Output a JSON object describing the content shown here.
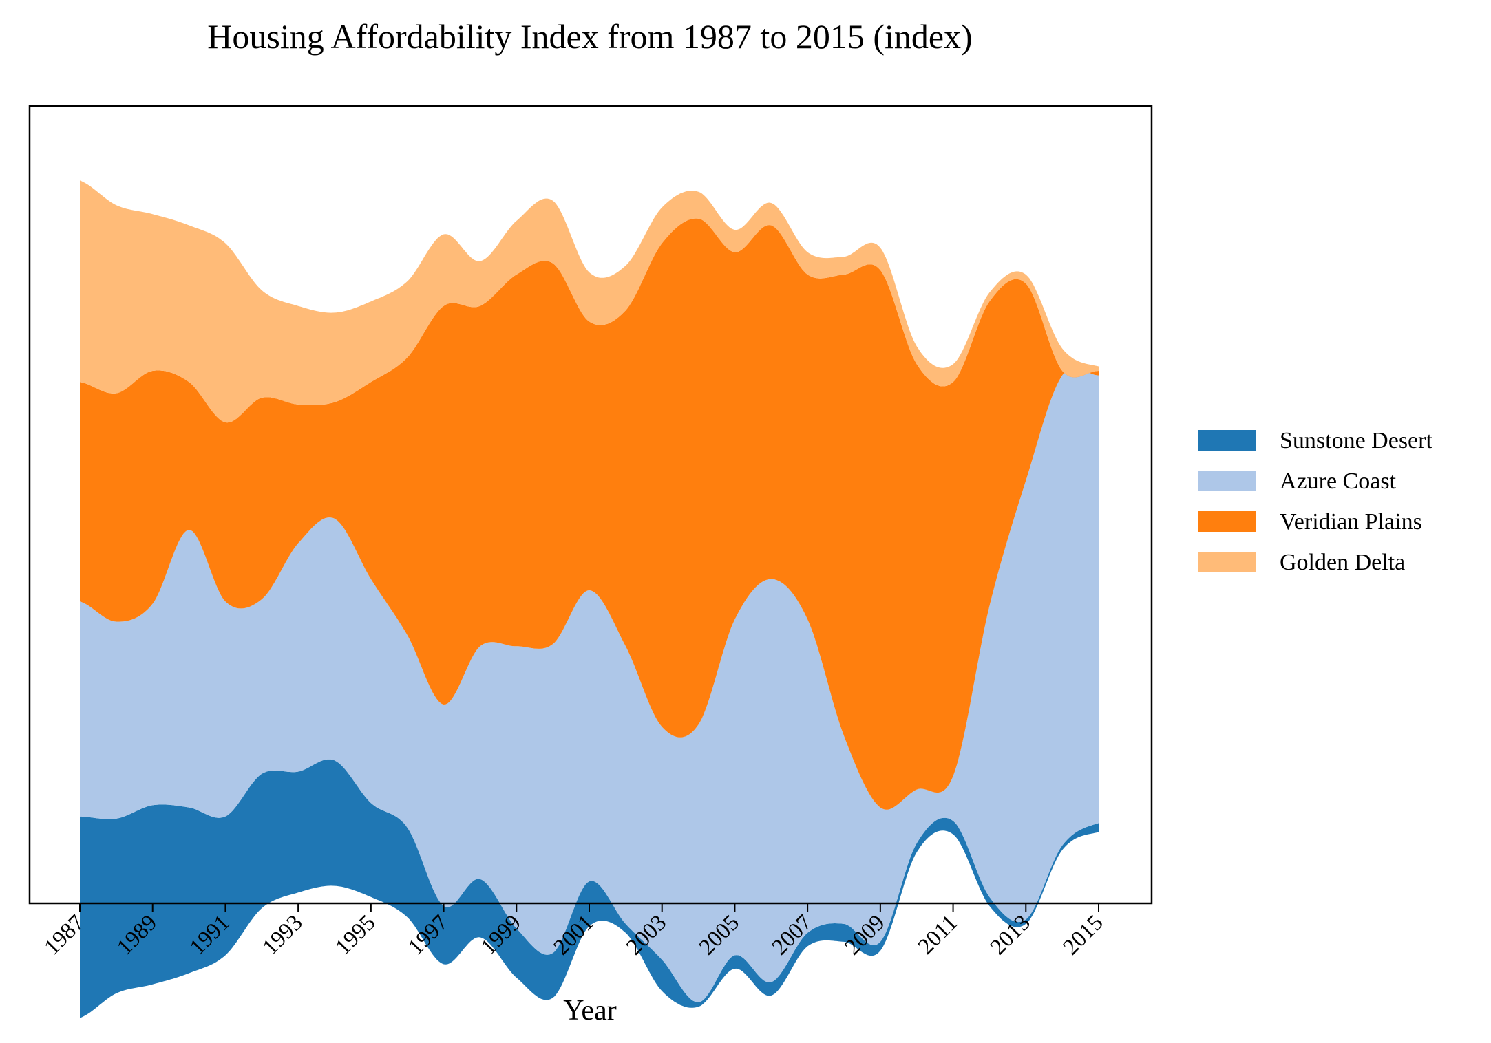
{
  "chart_data": {
    "type": "area",
    "stacked": true,
    "baseline": "streamgraph",
    "title": "Housing Affordability Index from 1987 to 2015 (index)",
    "xlabel": "Year",
    "ylabel": "",
    "x_ticks": [
      "1987",
      "1989",
      "1991",
      "1993",
      "1995",
      "1997",
      "1999",
      "2001",
      "2003",
      "2005",
      "2007",
      "2009",
      "2011",
      "2013",
      "2015"
    ],
    "x": [
      1987,
      1988,
      1989,
      1990,
      1991,
      1992,
      1993,
      1994,
      1995,
      1996,
      1997,
      1998,
      1999,
      2000,
      2001,
      2002,
      2003,
      2004,
      2005,
      2006,
      2007,
      2008,
      2009,
      2010,
      2011,
      2012,
      2013,
      2014,
      2015
    ],
    "legend_position": "right",
    "grid": false,
    "series": [
      {
        "name": "Sunstone Desert",
        "color": "#1f77b4",
        "values": [
          45,
          39,
          40,
          37,
          31,
          30,
          27,
          28,
          21,
          20,
          13,
          13,
          11,
          10,
          10,
          2,
          7,
          1,
          3,
          3,
          3,
          4,
          2,
          2,
          3,
          2,
          1,
          1,
          2
        ]
      },
      {
        "name": "Azure Coast",
        "color": "#aec7e8",
        "values": [
          48,
          44,
          45,
          62,
          48,
          39,
          51,
          54,
          50,
          43,
          45,
          52,
          63,
          69,
          65,
          62,
          52,
          62,
          75,
          90,
          70,
          42,
          30,
          12,
          10,
          65,
          98,
          105,
          100
        ]
      },
      {
        "name": "Veridian Plains",
        "color": "#ff7f0e",
        "values": [
          49,
          51,
          52,
          33,
          40,
          45,
          31,
          26,
          44,
          62,
          89,
          76,
          83,
          85,
          60,
          75,
          108,
          113,
          82,
          79,
          77,
          103,
          120,
          95,
          88,
          68,
          44,
          1,
          1
        ]
      },
      {
        "name": "Golden Delta",
        "color": "#ffbb78",
        "values": [
          45,
          42,
          35,
          35,
          40,
          24,
          22,
          20,
          18,
          17,
          16,
          10,
          12,
          14,
          11,
          10,
          8,
          6,
          5,
          5,
          5,
          4,
          5,
          4,
          4,
          2,
          2,
          5,
          1
        ]
      }
    ]
  }
}
